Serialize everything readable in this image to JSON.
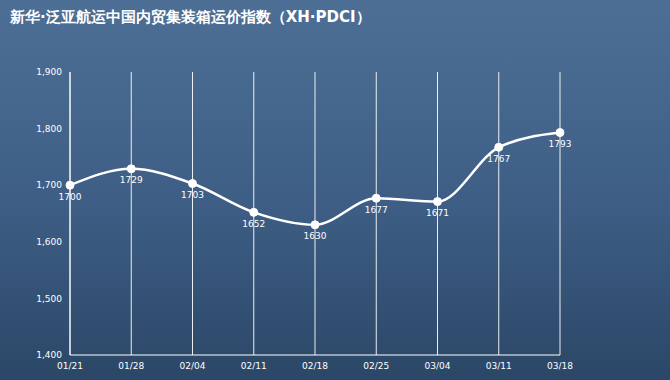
{
  "chart_data": {
    "type": "line",
    "title": "新华·泛亚航运中国内贸集装箱运价指数（XH·PDCI）",
    "categories": [
      "01/21",
      "01/28",
      "02/04",
      "02/11",
      "02/18",
      "02/25",
      "03/04",
      "03/11",
      "03/18"
    ],
    "values": [
      1700,
      1729,
      1703,
      1652,
      1630,
      1677,
      1671,
      1767,
      1793
    ],
    "color": "#ffffff",
    "marker": "circle",
    "ylim": [
      1400,
      1900
    ],
    "yticks": [
      {
        "value": 1400,
        "label": "1,400"
      },
      {
        "value": 1500,
        "label": "1,500"
      },
      {
        "value": 1600,
        "label": "1,600"
      },
      {
        "value": 1700,
        "label": "1,700"
      },
      {
        "value": 1800,
        "label": "1,800"
      },
      {
        "value": 1900,
        "label": "1,900"
      }
    ],
    "grid": true,
    "data_labels": true
  }
}
